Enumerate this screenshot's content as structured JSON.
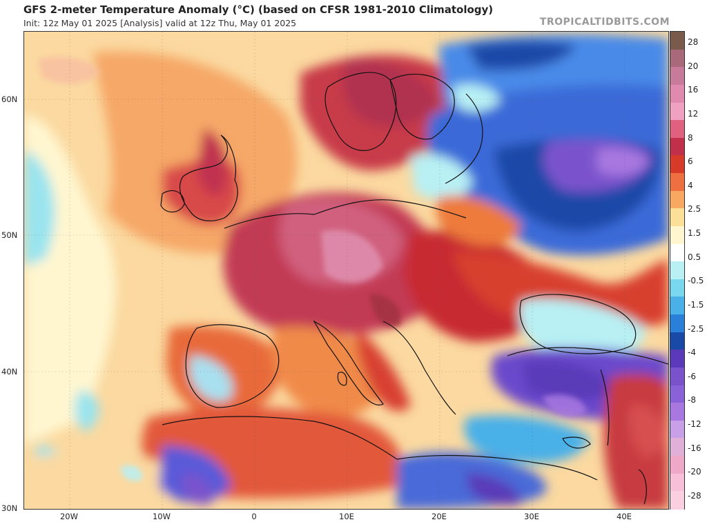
{
  "header": {
    "title": "GFS 2-meter Temperature Anomaly (°C) (based on CFSR 1981-2010 Climatology)",
    "subtitle": "Init: 12z May 01 2025   [Analysis]   valid at 12z Thu, May 01 2025",
    "brand": "TROPICALTIDBITS.COM"
  },
  "axes": {
    "lat_labels": [
      "60N",
      "50N",
      "40N",
      "30N"
    ],
    "lon_labels": [
      "20W",
      "10W",
      "0",
      "10E",
      "20E",
      "30E",
      "40E"
    ]
  },
  "colorbar": {
    "labels": [
      "28",
      "20",
      "16",
      "12",
      "8",
      "6",
      "4",
      "2.5",
      "1.5",
      "0.5",
      "-0.5",
      "-1.5",
      "-2.5",
      "-4",
      "-6",
      "-8",
      "-12",
      "-16",
      "-20",
      "-28"
    ],
    "colors": [
      "#7a5a4a",
      "#a86a7a",
      "#c77a9a",
      "#e08ab0",
      "#f0a0c0",
      "#e06080",
      "#c0304a",
      "#d83a2a",
      "#ee7040",
      "#f8a860",
      "#fce098",
      "#fff6d0",
      "#ffffff",
      "#b8f0f4",
      "#7ad8ee",
      "#4ab0e8",
      "#2a80d8",
      "#1a4aa8",
      "#5a3ab8",
      "#7a52cc",
      "#8a62d8",
      "#a878e0",
      "#c8a0e8",
      "#e0b0d8",
      "#f0a8c8",
      "#f8c0d8",
      "#fad0e0"
    ]
  }
}
